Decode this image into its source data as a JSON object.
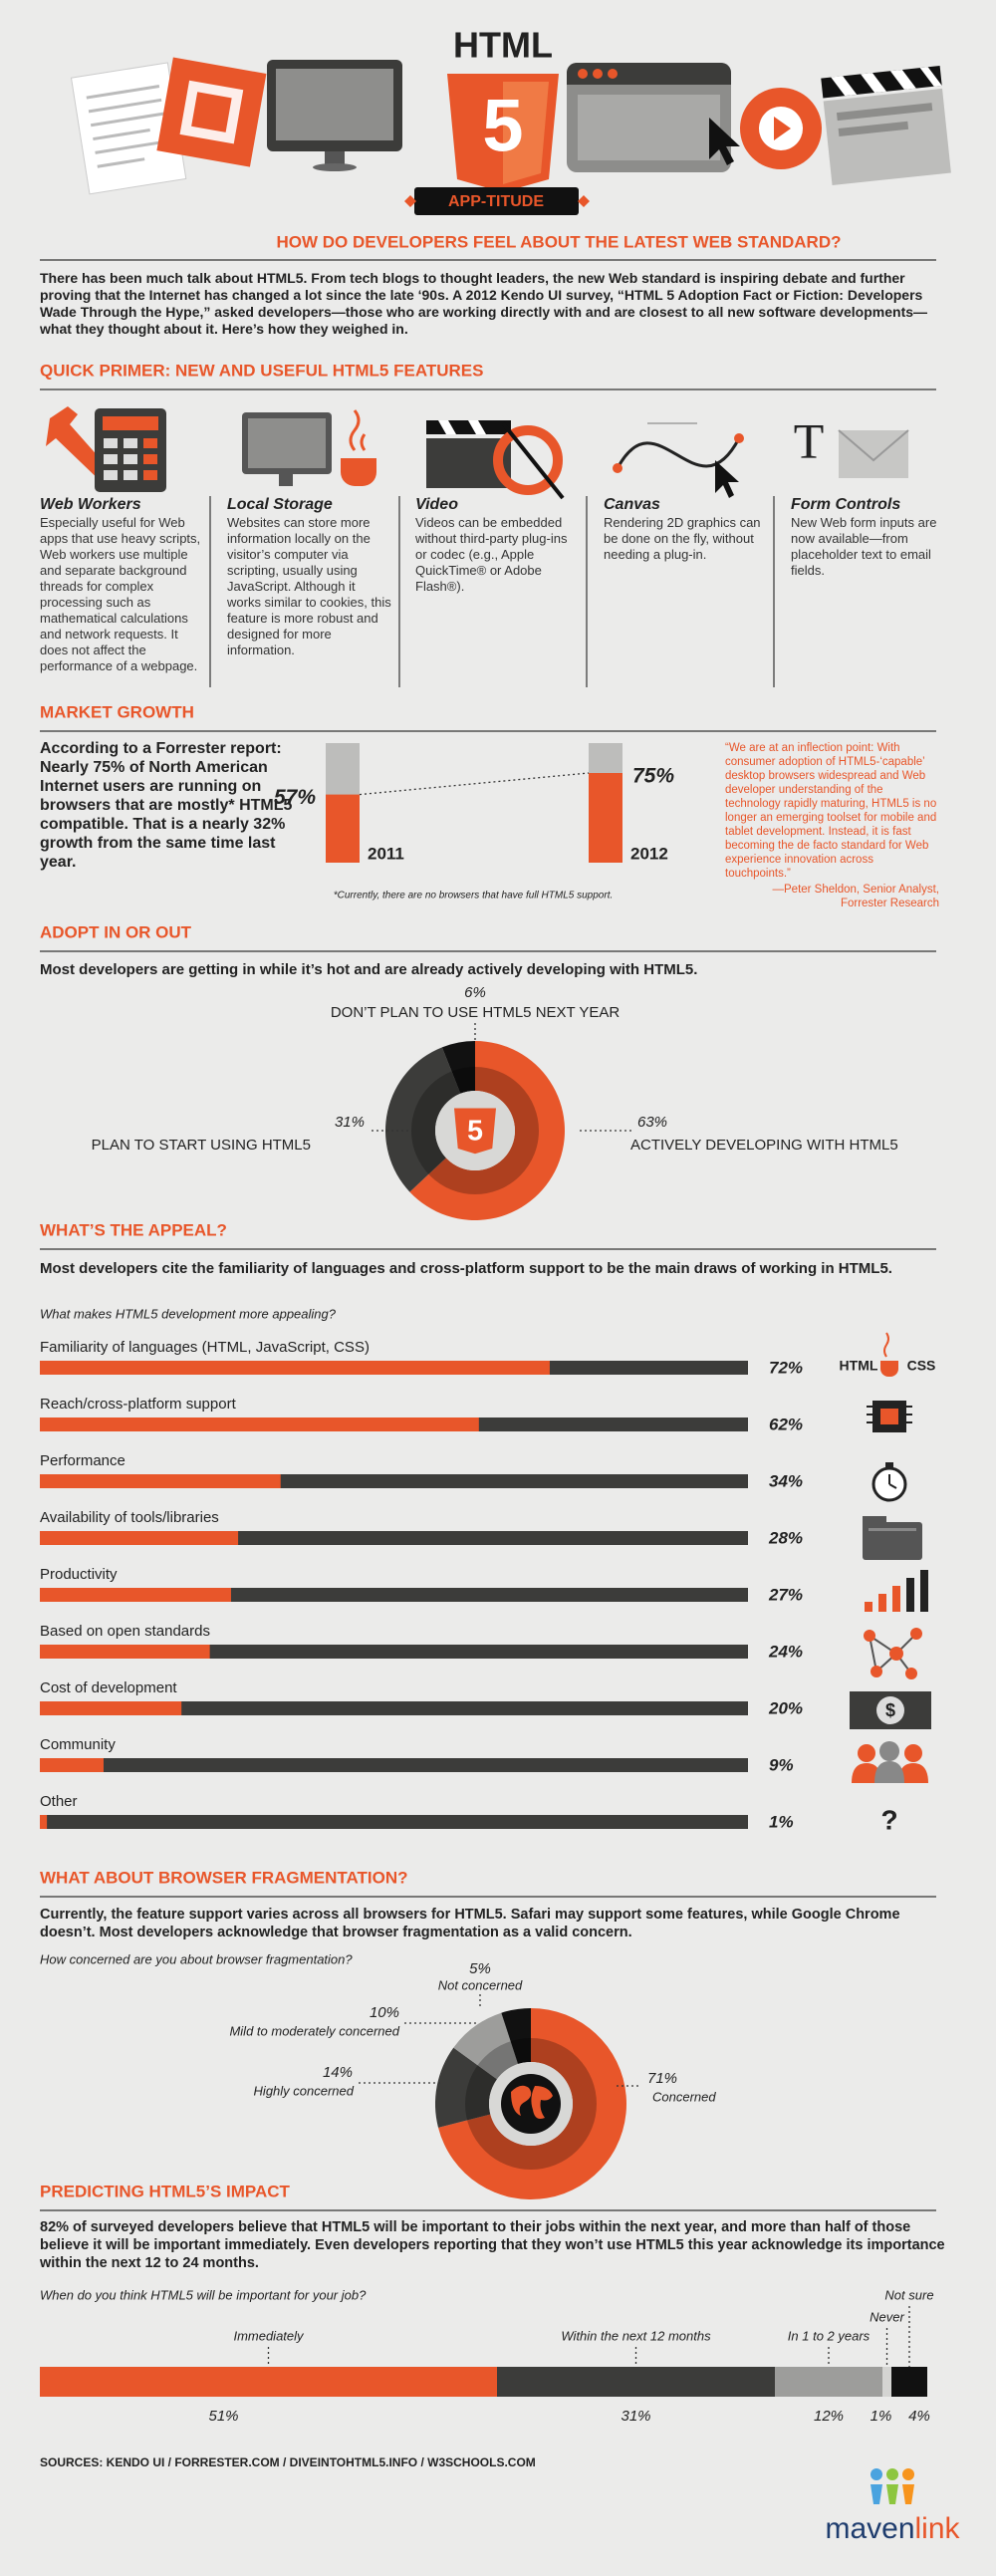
{
  "header": {
    "title": "HTML",
    "logo_digit": "5",
    "badge": "APP-TITUDE",
    "subtitle": "HOW DO DEVELOPERS FEEL ABOUT THE LATEST WEB STANDARD?"
  },
  "intro": "There has been much talk about HTML5. From tech blogs to thought leaders, the new Web standard is inspiring debate and further proving that the Internet has changed a lot since the late ‘90s. A 2012 Kendo UI survey, “HTML 5 Adoption Fact or Fiction: Developers Wade Through the Hype,” asked developers—those who are working directly with and are closest to all new software developments—what they thought about it. Here’s how they weighed in.",
  "primer": {
    "heading": "QUICK PRIMER: NEW AND USEFUL HTML5 FEATURES",
    "form_icon_text": "T",
    "items": [
      {
        "title": "Web Workers",
        "text": "Especially useful for Web apps that use heavy scripts, Web workers use multiple and separate background threads for complex processing such as mathematical calculations and network requests. It does not affect the performance of a webpage."
      },
      {
        "title": "Local Storage",
        "text": "Websites can store more information locally on the visitor’s computer via scripting, usually using JavaScript. Although it works similar to cookies, this feature is more robust and designed for more information."
      },
      {
        "title": "Video",
        "text": "Videos can be embedded without third-party plug-ins or codec (e.g., Apple QuickTime® or Adobe Flash®)."
      },
      {
        "title": "Canvas",
        "text": "Rendering 2D graphics can be done on the fly, without needing a plug-in."
      },
      {
        "title": "Form Controls",
        "text": "New Web form inputs are now available—from placeholder text to email fields."
      }
    ]
  },
  "market": {
    "heading": "MARKET GROWTH",
    "text": "According to a Forrester report: Nearly 75% of North American Internet users are running on browsers that are mostly* HTML5 compatible. That is a nearly 32% growth from the same time last year.",
    "quote": "“We are at an inflection point: With consumer adoption of HTML5-‘capable’ desktop browsers widespread and Web developer understanding of the technology rapidly maturing, HTML5 is no longer an emerging toolset for mobile and tablet development. Instead, it is fast becoming the de facto standard for Web experience innovation across touchpoints.”",
    "attribution": [
      "—Peter Sheldon, Senior Analyst,",
      "Forrester Research"
    ]
  },
  "adopt": {
    "heading": "ADOPT IN OR OUT",
    "subtitle": "Most developers are getting in while it’s hot and are already actively developing with HTML5."
  },
  "appeal": {
    "heading": "WHAT’S THE APPEAL?",
    "subtitle": "Most developers cite the familiarity of languages and cross-platform support to be the main draws of working in HTML5.",
    "icon_texts": [
      "HTML",
      "CSS",
      "$",
      "?"
    ]
  },
  "fragmentation": {
    "heading": "WHAT ABOUT BROWSER FRAGMENTATION?",
    "text": "Currently, the feature support varies across all browsers for HTML5. Safari may support some features, while Google Chrome doesn’t. Most developers acknowledge that browser fragmentation as a valid concern."
  },
  "impact": {
    "heading": "PREDICTING HTML5’S IMPACT",
    "text": "82% of surveyed developers believe that HTML5 will be important to their jobs within the next year, and more than half of those believe it will be important immediately. Even developers reporting that they won’t use HTML5 this year acknowledge its importance within the next 12 to 24 months."
  },
  "sources": "SOURCES: KENDO UI / FORRESTER.COM / DIVEINTOHTML5.INFO / W3SCHOOLS.COM",
  "logo": [
    "maven",
    "link"
  ],
  "chart_data": [
    {
      "type": "bar",
      "categories": [
        "2011",
        "2012"
      ],
      "values": [
        57,
        75
      ],
      "value_labels": [
        "57%",
        "75%"
      ],
      "ylim": [
        0,
        100
      ],
      "color": "#e8562a",
      "track_color": "#bdbdbb",
      "footnote": "*Currently, there are no browsers that have full HTML5 support."
    },
    {
      "type": "donut",
      "categories": [
        "ACTIVELY DEVELOPING WITH HTML5",
        "PLAN TO START USING HTML5",
        "DON’T PLAN TO USE HTML5 NEXT YEAR"
      ],
      "values": [
        63,
        31,
        6
      ],
      "value_labels": [
        "63%",
        "31%",
        "6%"
      ],
      "colors": [
        "#e8562a",
        "#3c3c3a",
        "#111111"
      ]
    },
    {
      "type": "hbar",
      "title": "What makes HTML5 development more appealing?",
      "categories": [
        "Familiarity of languages (HTML, JavaScript, CSS)",
        "Reach/cross-platform support",
        "Performance",
        "Availability of tools/libraries",
        "Productivity",
        "Based on open standards",
        "Cost of development",
        "Community",
        "Other"
      ],
      "values": [
        72,
        62,
        34,
        28,
        27,
        24,
        20,
        9,
        1
      ],
      "value_labels": [
        "72%",
        "62%",
        "34%",
        "28%",
        "27%",
        "24%",
        "20%",
        "9%",
        "1%"
      ],
      "xlim": [
        0,
        100
      ],
      "color": "#e8562a",
      "track_color": "#3c3c3a"
    },
    {
      "type": "donut",
      "title": "How concerned are you about browser fragmentation?",
      "categories": [
        "Concerned",
        "Highly concerned",
        "Mild to moderately concerned",
        "Not concerned"
      ],
      "values": [
        71,
        14,
        10,
        5
      ],
      "value_labels": [
        "71%",
        "14%",
        "10%",
        "5%"
      ],
      "colors": [
        "#e8562a",
        "#3c3c3a",
        "#9d9d9b",
        "#111111"
      ]
    },
    {
      "type": "stacked_bar",
      "title": "When do you think HTML5 will be important for your job?",
      "categories": [
        "Immediately",
        "Within the next 12 months",
        "In 1 to 2 years",
        "Never",
        "Not sure"
      ],
      "values": [
        51,
        31,
        12,
        1,
        4
      ],
      "value_labels": [
        "51%",
        "31%",
        "12%",
        "1%",
        "4%"
      ],
      "xlim": [
        0,
        100
      ],
      "colors": [
        "#e8562a",
        "#3c3c3a",
        "#9d9d9b",
        "#d4d4d2",
        "#111111"
      ]
    }
  ]
}
